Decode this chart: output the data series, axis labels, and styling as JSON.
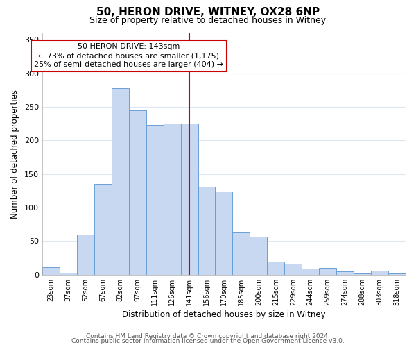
{
  "title": "50, HERON DRIVE, WITNEY, OX28 6NP",
  "subtitle": "Size of property relative to detached houses in Witney",
  "xlabel": "Distribution of detached houses by size in Witney",
  "ylabel": "Number of detached properties",
  "bar_labels": [
    "23sqm",
    "37sqm",
    "52sqm",
    "67sqm",
    "82sqm",
    "97sqm",
    "111sqm",
    "126sqm",
    "141sqm",
    "156sqm",
    "170sqm",
    "185sqm",
    "200sqm",
    "215sqm",
    "229sqm",
    "244sqm",
    "259sqm",
    "274sqm",
    "288sqm",
    "303sqm",
    "318sqm"
  ],
  "bar_values": [
    11,
    3,
    60,
    135,
    278,
    245,
    223,
    225,
    225,
    131,
    124,
    63,
    57,
    19,
    16,
    9,
    10,
    5,
    2,
    6,
    2
  ],
  "bar_color": "#c8d8f0",
  "bar_edge_color": "#6a9fd8",
  "vline_x_index": 8,
  "vline_color": "#cc0000",
  "annotation_title": "50 HERON DRIVE: 143sqm",
  "annotation_line1": "← 73% of detached houses are smaller (1,175)",
  "annotation_line2": "25% of semi-detached houses are larger (404) →",
  "annotation_box_color": "#ffffff",
  "annotation_box_edge": "#cc0000",
  "footer_line1": "Contains HM Land Registry data © Crown copyright and database right 2024.",
  "footer_line2": "Contains public sector information licensed under the Open Government Licence v3.0.",
  "ylim": [
    0,
    360
  ],
  "yticks": [
    0,
    50,
    100,
    150,
    200,
    250,
    300,
    350
  ],
  "background_color": "#ffffff",
  "grid_color": "#dde8f5"
}
